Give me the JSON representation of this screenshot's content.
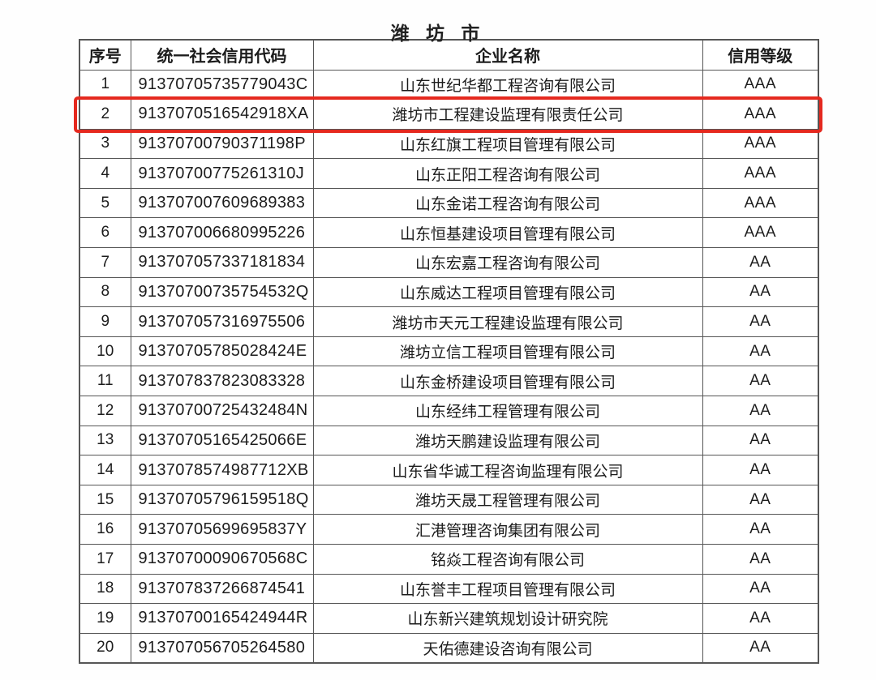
{
  "page": {
    "title": "潍 坊 市"
  },
  "table": {
    "headers": [
      "序号",
      "统一社会信用代码",
      "企业名称",
      "信用等级"
    ],
    "rows": [
      {
        "no": "1",
        "code": "91370705735779043C",
        "name": "山东世纪华都工程咨询有限公司",
        "rating": "AAA",
        "highlighted": false
      },
      {
        "no": "2",
        "code": "9137070516542918XA",
        "name": "潍坊市工程建设监理有限责任公司",
        "rating": "AAA",
        "highlighted": true
      },
      {
        "no": "3",
        "code": "91370700790371198P",
        "name": "山东红旗工程项目管理有限公司",
        "rating": "AAA",
        "highlighted": false
      },
      {
        "no": "4",
        "code": "91370700775261310J",
        "name": "山东正阳工程咨询有限公司",
        "rating": "AAA",
        "highlighted": false
      },
      {
        "no": "5",
        "code": "913707007609689383",
        "name": "山东金诺工程咨询有限公司",
        "rating": "AAA",
        "highlighted": false
      },
      {
        "no": "6",
        "code": "913707006680995226",
        "name": "山东恒基建设项目管理有限公司",
        "rating": "AAA",
        "highlighted": false
      },
      {
        "no": "7",
        "code": "913707057337181834",
        "name": "山东宏嘉工程咨询有限公司",
        "rating": "AA",
        "highlighted": false
      },
      {
        "no": "8",
        "code": "91370700735754532Q",
        "name": "山东威达工程项目管理有限公司",
        "rating": "AA",
        "highlighted": false
      },
      {
        "no": "9",
        "code": "913707057316975506",
        "name": "潍坊市天元工程建设监理有限公司",
        "rating": "AA",
        "highlighted": false
      },
      {
        "no": "10",
        "code": "91370705785028424E",
        "name": "潍坊立信工程项目管理有限公司",
        "rating": "AA",
        "highlighted": false
      },
      {
        "no": "11",
        "code": "913707837823083328",
        "name": "山东金桥建设项目管理有限公司",
        "rating": "AA",
        "highlighted": false
      },
      {
        "no": "12",
        "code": "91370700725432484N",
        "name": "山东经纬工程管理有限公司",
        "rating": "AA",
        "highlighted": false
      },
      {
        "no": "13",
        "code": "91370705165425066E",
        "name": "潍坊天鹏建设监理有限公司",
        "rating": "AA",
        "highlighted": false
      },
      {
        "no": "14",
        "code": "9137078574987712XB",
        "name": "山东省华诚工程咨询监理有限公司",
        "rating": "AA",
        "highlighted": false
      },
      {
        "no": "15",
        "code": "91370705796159518Q",
        "name": "潍坊天晟工程管理有限公司",
        "rating": "AA",
        "highlighted": false
      },
      {
        "no": "16",
        "code": "91370705699695837Y",
        "name": "汇港管理咨询集团有限公司",
        "rating": "AA",
        "highlighted": false
      },
      {
        "no": "17",
        "code": "91370700090670568C",
        "name": "铭焱工程咨询有限公司",
        "rating": "AA",
        "highlighted": false
      },
      {
        "no": "18",
        "code": "913707837266874541",
        "name": "山东誉丰工程项目管理有限公司",
        "rating": "AA",
        "highlighted": false
      },
      {
        "no": "19",
        "code": "91370700165424944R",
        "name": "山东新兴建筑规划设计研究院",
        "rating": "AA",
        "highlighted": false
      },
      {
        "no": "20",
        "code": "913707056705264580",
        "name": "天佑德建设咨询有限公司",
        "rating": "AA",
        "highlighted": false
      }
    ]
  },
  "colors": {
    "highlight_border": "#e5291f",
    "table_border": "#565656",
    "text": "#1c1c1c",
    "background": "#ffffff"
  }
}
